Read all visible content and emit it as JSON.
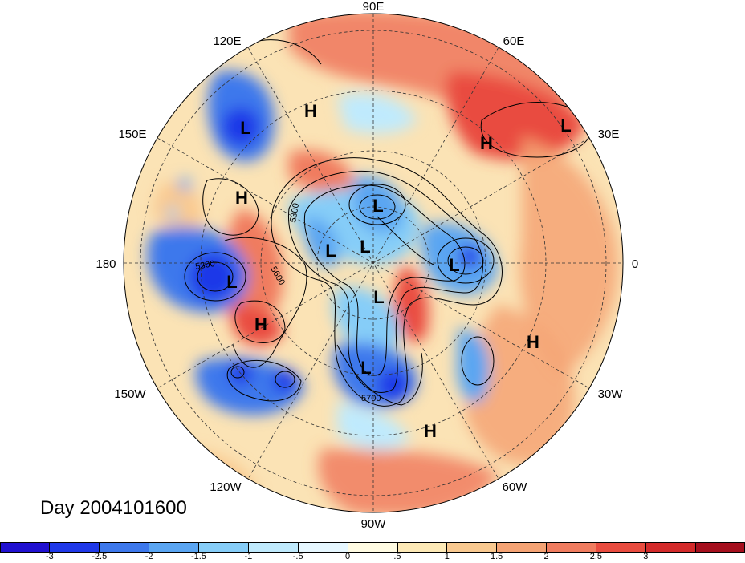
{
  "date_label": "Day 2004101600",
  "longitude_labels": {
    "lon_90e": "90E",
    "lon_120e": "120E",
    "lon_60e": "60E",
    "lon_150e": "150E",
    "lon_30e": "30E",
    "lon_180": "180",
    "lon_0": "0",
    "lon_150w": "150W",
    "lon_30w": "30W",
    "lon_120w": "120W",
    "lon_60w": "60W",
    "lon_90w": "90W"
  },
  "pressure_centers": [
    {
      "type": "L"
    },
    {
      "type": "H"
    },
    {
      "type": "H"
    },
    {
      "type": "L"
    },
    {
      "type": "H"
    },
    {
      "type": "L"
    },
    {
      "type": "L"
    },
    {
      "type": "L"
    },
    {
      "type": "L"
    },
    {
      "type": "L"
    },
    {
      "type": "H"
    },
    {
      "type": "L"
    },
    {
      "type": "L"
    },
    {
      "type": "H"
    },
    {
      "type": "H"
    }
  ],
  "contour_labels": [
    "5300",
    "5600",
    "5700",
    "5300"
  ],
  "colorbar": {
    "colors": [
      "#2010d0",
      "#1f38e8",
      "#3d78ec",
      "#5aa5f2",
      "#86cdf8",
      "#bfeafd",
      "#e6f7ff",
      "#fffbe2",
      "#fde9b6",
      "#f9c990",
      "#f5a374",
      "#f07c5f",
      "#e94c3f",
      "#d32a2a",
      "#a50f1d"
    ],
    "tick_labels": [
      "-3",
      "-2.5",
      "-2",
      "-1.5",
      "-1",
      "-.5",
      "0",
      ".5",
      "1",
      "1.5",
      "2",
      "2.5",
      "3"
    ]
  }
}
